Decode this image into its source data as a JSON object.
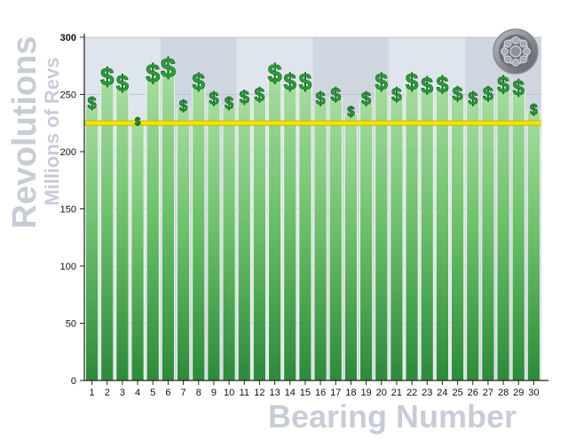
{
  "chart_data": {
    "type": "bar",
    "title": "",
    "xlabel": "Bearing Number",
    "ylabel": "Revolutions",
    "ylabel_sub": "Millions of Revs",
    "ylim": [
      0,
      300
    ],
    "yticks": [
      "0",
      "50",
      "100",
      "150",
      "200",
      "250",
      "300"
    ],
    "categories": [
      "1",
      "2",
      "3",
      "4",
      "5",
      "6",
      "7",
      "8",
      "9",
      "10",
      "11",
      "12",
      "13",
      "14",
      "15",
      "16",
      "17",
      "18",
      "19",
      "20",
      "21",
      "22",
      "23",
      "24",
      "25",
      "26",
      "27",
      "28",
      "29",
      "30"
    ],
    "values": [
      240,
      262,
      257,
      225,
      265,
      270,
      238,
      258,
      244,
      240,
      245,
      247,
      265,
      258,
      258,
      244,
      247,
      233,
      244,
      258,
      247,
      258,
      255,
      256,
      248,
      244,
      248,
      256,
      253,
      235
    ],
    "threshold": 225,
    "grid": true,
    "colors": {
      "bar": "#6fbf6f",
      "bar_dark": "#2f8a3c",
      "threshold": "#f2e600",
      "background_band_a": "#dfe5ec",
      "background_band_b": "#cfd6df",
      "axis_label": "#c7ccd8",
      "dollar": "#2aa33a"
    },
    "icons": {
      "marker": "dollar-sign-icon",
      "corner": "bearing-icon"
    }
  }
}
